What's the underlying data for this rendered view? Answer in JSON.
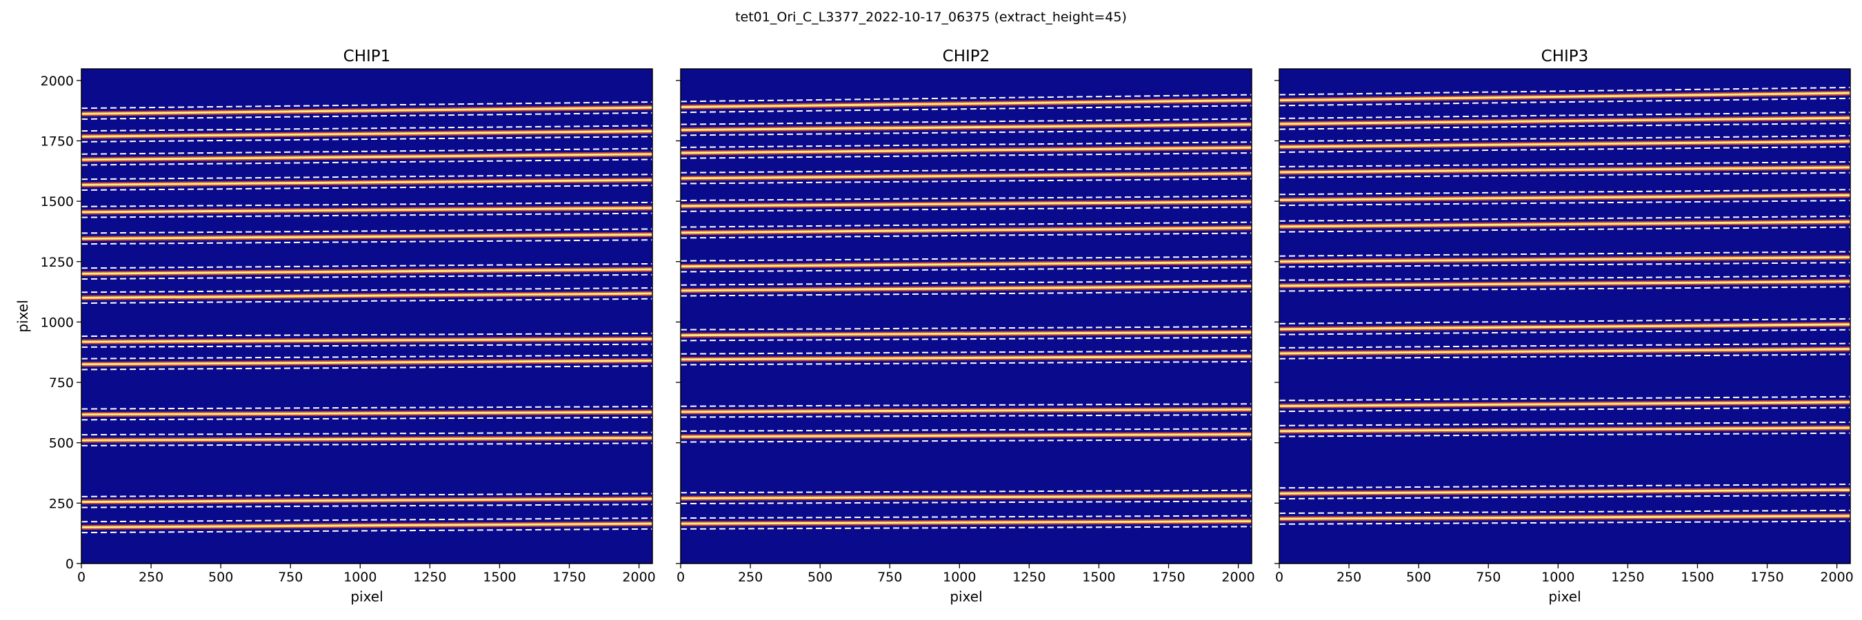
{
  "figure": {
    "suptitle": "tet01_Ori_C_L3377_2022-10-17_06375  (extract_height=45)"
  },
  "colors": {
    "background": "#0a0a8c",
    "trace_core": "#fff27a",
    "trace_halo": "#d9483b",
    "boundary": "#ffffff"
  },
  "chart_data": [
    {
      "type": "heatmap",
      "title": "CHIP1",
      "xlabel": "pixel",
      "ylabel": "pixel",
      "xlim": [
        0,
        2048
      ],
      "ylim": [
        0,
        2048
      ],
      "xticks": [
        0,
        250,
        500,
        750,
        1000,
        1250,
        1500,
        1750,
        2000
      ],
      "yticks": [
        0,
        250,
        500,
        750,
        1000,
        1250,
        1500,
        1750,
        2000
      ],
      "boundary_style": "dashed",
      "traces": [
        {
          "center": [
            150,
            165
          ],
          "edges_lower": [
            128,
            143
          ],
          "edges_upper": [
            173,
            188
          ]
        },
        {
          "center": [
            255,
            268
          ],
          "edges_lower": [
            232,
            245
          ],
          "edges_upper": [
            277,
            290
          ]
        },
        {
          "center": [
            510,
            520
          ],
          "edges_lower": [
            488,
            498
          ],
          "edges_upper": [
            533,
            543
          ]
        },
        {
          "center": [
            617,
            627
          ],
          "edges_lower": [
            595,
            605
          ],
          "edges_upper": [
            640,
            650
          ]
        },
        {
          "center": [
            825,
            840
          ],
          "edges_lower": [
            803,
            818
          ],
          "edges_upper": [
            848,
            863
          ]
        },
        {
          "center": [
            918,
            930
          ],
          "edges_lower": [
            896,
            908
          ],
          "edges_upper": [
            941,
            953
          ]
        },
        {
          "center": [
            1100,
            1118
          ],
          "edges_lower": [
            1078,
            1096
          ],
          "edges_upper": [
            1123,
            1141
          ]
        },
        {
          "center": [
            1200,
            1218
          ],
          "edges_lower": [
            1178,
            1196
          ],
          "edges_upper": [
            1223,
            1241
          ]
        },
        {
          "center": [
            1345,
            1362
          ],
          "edges_lower": [
            1323,
            1340
          ],
          "edges_upper": [
            1368,
            1385
          ]
        },
        {
          "center": [
            1455,
            1472
          ],
          "edges_lower": [
            1433,
            1450
          ],
          "edges_upper": [
            1478,
            1495
          ]
        },
        {
          "center": [
            1568,
            1588
          ],
          "edges_lower": [
            1546,
            1566
          ],
          "edges_upper": [
            1591,
            1611
          ]
        },
        {
          "center": [
            1672,
            1695
          ],
          "edges_lower": [
            1650,
            1673
          ],
          "edges_upper": [
            1695,
            1718
          ]
        },
        {
          "center": [
            1768,
            1790
          ],
          "edges_lower": [
            1746,
            1768
          ],
          "edges_upper": [
            1791,
            1813
          ]
        },
        {
          "center": [
            1862,
            1888
          ],
          "edges_lower": [
            1840,
            1866
          ],
          "edges_upper": [
            1885,
            1911
          ]
        }
      ]
    },
    {
      "type": "heatmap",
      "title": "CHIP2",
      "xlabel": "pixel",
      "ylabel": "",
      "xlim": [
        0,
        2048
      ],
      "ylim": [
        0,
        2048
      ],
      "xticks": [
        0,
        250,
        500,
        750,
        1000,
        1250,
        1500,
        1750,
        2000
      ],
      "yticks": [
        0,
        250,
        500,
        750,
        1000,
        1250,
        1500,
        1750,
        2000
      ],
      "boundary_style": "dashed",
      "traces": [
        {
          "center": [
            165,
            175
          ],
          "edges_lower": [
            143,
            153
          ],
          "edges_upper": [
            188,
            198
          ]
        },
        {
          "center": [
            270,
            280
          ],
          "edges_lower": [
            248,
            258
          ],
          "edges_upper": [
            293,
            303
          ]
        },
        {
          "center": [
            525,
            535
          ],
          "edges_lower": [
            503,
            513
          ],
          "edges_upper": [
            548,
            558
          ]
        },
        {
          "center": [
            628,
            638
          ],
          "edges_lower": [
            606,
            616
          ],
          "edges_upper": [
            651,
            661
          ]
        },
        {
          "center": [
            845,
            858
          ],
          "edges_lower": [
            823,
            836
          ],
          "edges_upper": [
            868,
            881
          ]
        },
        {
          "center": [
            945,
            958
          ],
          "edges_lower": [
            923,
            936
          ],
          "edges_upper": [
            968,
            981
          ]
        },
        {
          "center": [
            1130,
            1148
          ],
          "edges_lower": [
            1108,
            1126
          ],
          "edges_upper": [
            1153,
            1171
          ]
        },
        {
          "center": [
            1230,
            1248
          ],
          "edges_lower": [
            1208,
            1226
          ],
          "edges_upper": [
            1253,
            1271
          ]
        },
        {
          "center": [
            1370,
            1390
          ],
          "edges_lower": [
            1348,
            1368
          ],
          "edges_upper": [
            1393,
            1413
          ]
        },
        {
          "center": [
            1480,
            1498
          ],
          "edges_lower": [
            1458,
            1476
          ],
          "edges_upper": [
            1503,
            1521
          ]
        },
        {
          "center": [
            1595,
            1615
          ],
          "edges_lower": [
            1573,
            1593
          ],
          "edges_upper": [
            1618,
            1638
          ]
        },
        {
          "center": [
            1700,
            1722
          ],
          "edges_lower": [
            1678,
            1700
          ],
          "edges_upper": [
            1723,
            1745
          ]
        },
        {
          "center": [
            1795,
            1818
          ],
          "edges_lower": [
            1773,
            1796
          ],
          "edges_upper": [
            1818,
            1841
          ]
        },
        {
          "center": [
            1890,
            1918
          ],
          "edges_lower": [
            1868,
            1896
          ],
          "edges_upper": [
            1913,
            1941
          ]
        }
      ]
    },
    {
      "type": "heatmap",
      "title": "CHIP3",
      "xlabel": "pixel",
      "ylabel": "",
      "xlim": [
        0,
        2048
      ],
      "ylim": [
        0,
        2048
      ],
      "xticks": [
        0,
        250,
        500,
        750,
        1000,
        1250,
        1500,
        1750,
        2000
      ],
      "yticks": [
        0,
        250,
        500,
        750,
        1000,
        1250,
        1500,
        1750,
        2000
      ],
      "boundary_style": "dashed",
      "traces": [
        {
          "center": [
            185,
            197
          ],
          "edges_lower": [
            163,
            175
          ],
          "edges_upper": [
            208,
            220
          ]
        },
        {
          "center": [
            290,
            305
          ],
          "edges_lower": [
            268,
            283
          ],
          "edges_upper": [
            313,
            328
          ]
        },
        {
          "center": [
            548,
            562
          ],
          "edges_lower": [
            526,
            540
          ],
          "edges_upper": [
            571,
            585
          ]
        },
        {
          "center": [
            652,
            668
          ],
          "edges_lower": [
            630,
            646
          ],
          "edges_upper": [
            675,
            691
          ]
        },
        {
          "center": [
            870,
            888
          ],
          "edges_lower": [
            848,
            866
          ],
          "edges_upper": [
            893,
            911
          ]
        },
        {
          "center": [
            970,
            990
          ],
          "edges_lower": [
            948,
            968
          ],
          "edges_upper": [
            993,
            1013
          ]
        },
        {
          "center": [
            1150,
            1168
          ],
          "edges_lower": [
            1128,
            1146
          ],
          "edges_upper": [
            1173,
            1191
          ]
        },
        {
          "center": [
            1250,
            1268
          ],
          "edges_lower": [
            1228,
            1246
          ],
          "edges_upper": [
            1273,
            1291
          ]
        },
        {
          "center": [
            1395,
            1415
          ],
          "edges_lower": [
            1373,
            1393
          ],
          "edges_upper": [
            1418,
            1438
          ]
        },
        {
          "center": [
            1505,
            1525
          ],
          "edges_lower": [
            1483,
            1503
          ],
          "edges_upper": [
            1528,
            1548
          ]
        },
        {
          "center": [
            1620,
            1640
          ],
          "edges_lower": [
            1598,
            1618
          ],
          "edges_upper": [
            1643,
            1663
          ]
        },
        {
          "center": [
            1725,
            1748
          ],
          "edges_lower": [
            1703,
            1726
          ],
          "edges_upper": [
            1748,
            1771
          ]
        },
        {
          "center": [
            1820,
            1845
          ],
          "edges_lower": [
            1798,
            1823
          ],
          "edges_upper": [
            1843,
            1868
          ]
        },
        {
          "center": [
            1918,
            1948
          ],
          "edges_lower": [
            1896,
            1926
          ],
          "edges_upper": [
            1941,
            1971
          ]
        }
      ]
    }
  ]
}
